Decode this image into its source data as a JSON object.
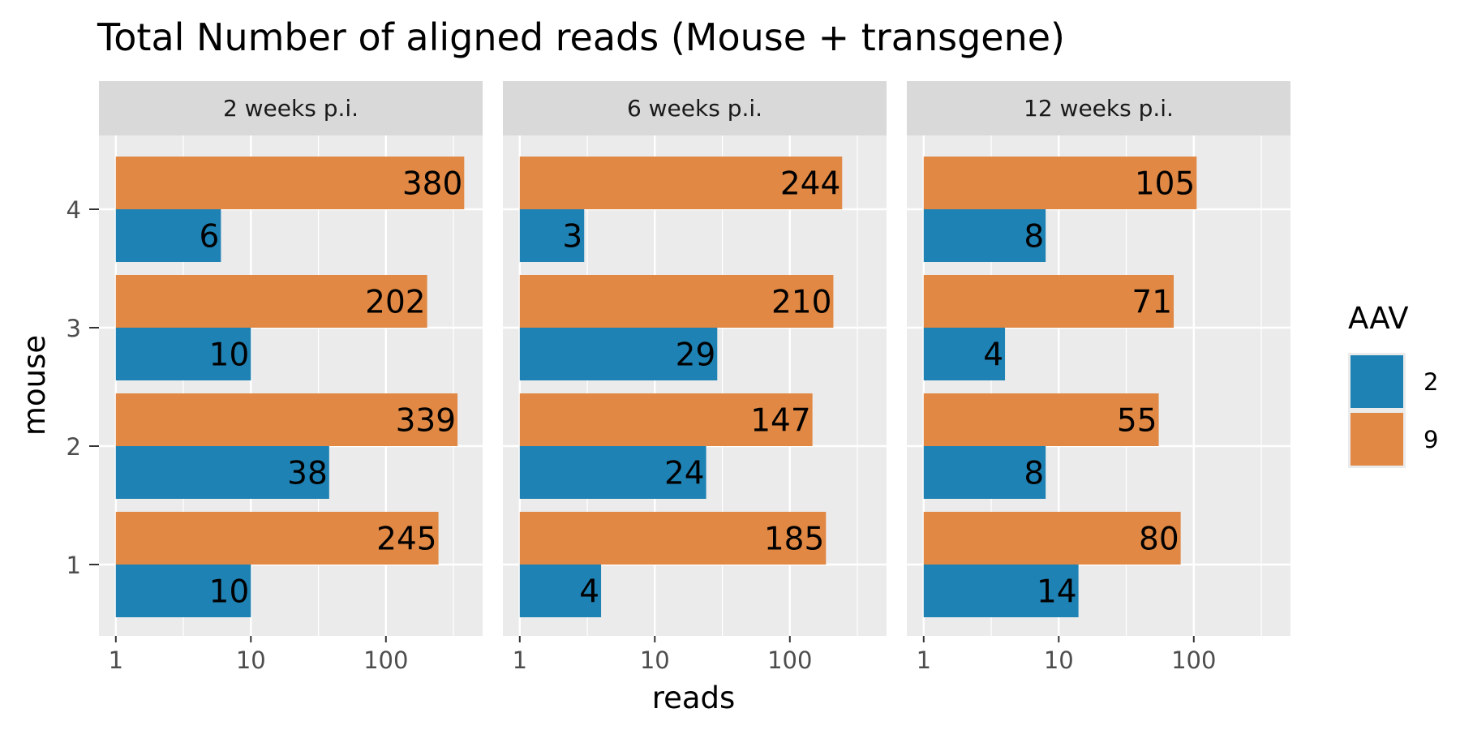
{
  "chart_data": {
    "type": "bar",
    "orientation": "horizontal",
    "title": "Total Number of aligned reads (Mouse + transgene)",
    "xlabel": "reads",
    "ylabel": "mouse",
    "x_scale": "log10",
    "xlim": [
      0.75,
      520
    ],
    "x_ticks": [
      1,
      10,
      100
    ],
    "x_tick_labels": [
      "1",
      "10",
      "100"
    ],
    "categories": [
      "1",
      "2",
      "3",
      "4"
    ],
    "grid": true,
    "legend": {
      "title": "AAV",
      "placement": "right",
      "entries": [
        {
          "label": "2",
          "color": "#1f82b4"
        },
        {
          "label": "9",
          "color": "#e08844"
        }
      ]
    },
    "panels": [
      {
        "label": "2 weeks p.i.",
        "series": [
          {
            "name": "2",
            "color": "#1f82b4",
            "values": [
              10,
              38,
              10,
              6
            ],
            "labels": [
              "10",
              "38",
              "10",
              "6"
            ]
          },
          {
            "name": "9",
            "color": "#e08844",
            "values": [
              245,
              339,
              202,
              380
            ],
            "labels": [
              "245",
              "339",
              "202",
              "380"
            ]
          }
        ]
      },
      {
        "label": "6 weeks p.i.",
        "series": [
          {
            "name": "2",
            "color": "#1f82b4",
            "values": [
              4,
              24,
              29,
              3
            ],
            "labels": [
              "4",
              "24",
              "29",
              "3"
            ]
          },
          {
            "name": "9",
            "color": "#e08844",
            "values": [
              185,
              147,
              210,
              244
            ],
            "labels": [
              "185",
              "147",
              "210",
              "244"
            ]
          }
        ]
      },
      {
        "label": "12 weeks p.i.",
        "series": [
          {
            "name": "2",
            "color": "#1f82b4",
            "values": [
              14,
              8,
              4,
              8
            ],
            "labels": [
              "14",
              "8",
              "4",
              "8"
            ]
          },
          {
            "name": "9",
            "color": "#e08844",
            "values": [
              80,
              55,
              71,
              105
            ],
            "labels": [
              "80",
              "55",
              "71",
              "105"
            ]
          }
        ]
      }
    ]
  }
}
